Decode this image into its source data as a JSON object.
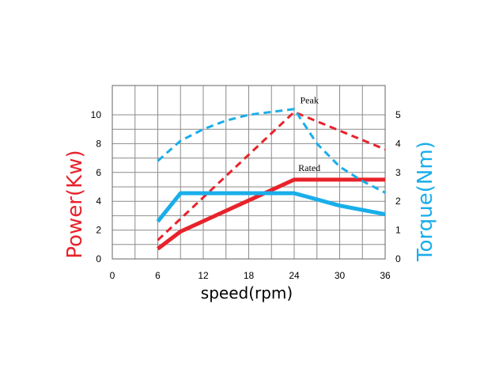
{
  "chart_data": {
    "type": "line",
    "xlabel": "speed(rpm)",
    "ylabel_left": "Power(Kw)",
    "ylabel_right": "Torque(Nm)",
    "xlim": [
      0,
      36
    ],
    "ylim_left": [
      0,
      10
    ],
    "ylim_right": [
      0,
      5
    ],
    "x_ticks": [
      0,
      6,
      12,
      18,
      24,
      30,
      36
    ],
    "y_left_ticks": [
      0,
      2,
      4,
      6,
      8,
      10
    ],
    "y_right_ticks": [
      0,
      1,
      2,
      3,
      4,
      5
    ],
    "grid": true,
    "colors": {
      "power": "#e8232b",
      "torque": "#19aeea"
    },
    "series": [
      {
        "axis": "left",
        "style": "dashed",
        "color": "#e8232b",
        "x": [
          6,
          24,
          36
        ],
        "y": [
          1.3,
          10.2,
          7.6
        ]
      },
      {
        "axis": "left",
        "style": "solid",
        "color": "#e8232b",
        "x": [
          6,
          9,
          24,
          36
        ],
        "y": [
          0.7,
          1.9,
          5.5,
          5.5
        ]
      },
      {
        "axis": "right",
        "style": "dashed",
        "color": "#19aeea",
        "x": [
          6,
          9,
          12,
          15,
          18,
          21,
          24,
          27,
          30,
          33,
          36
        ],
        "y": [
          3.4,
          4.1,
          4.5,
          4.8,
          5.0,
          5.1,
          5.2,
          4.0,
          3.2,
          2.7,
          2.3
        ]
      },
      {
        "axis": "right",
        "style": "solid",
        "color": "#19aeea",
        "x": [
          6,
          9,
          24,
          30,
          36
        ],
        "y": [
          1.3,
          2.28,
          2.28,
          1.85,
          1.55
        ]
      }
    ],
    "annotations": [
      {
        "text": "Peak",
        "x": 26,
        "y_left": 10.8
      },
      {
        "text": "Rated",
        "x": 26,
        "y_left": 6.1
      }
    ]
  }
}
